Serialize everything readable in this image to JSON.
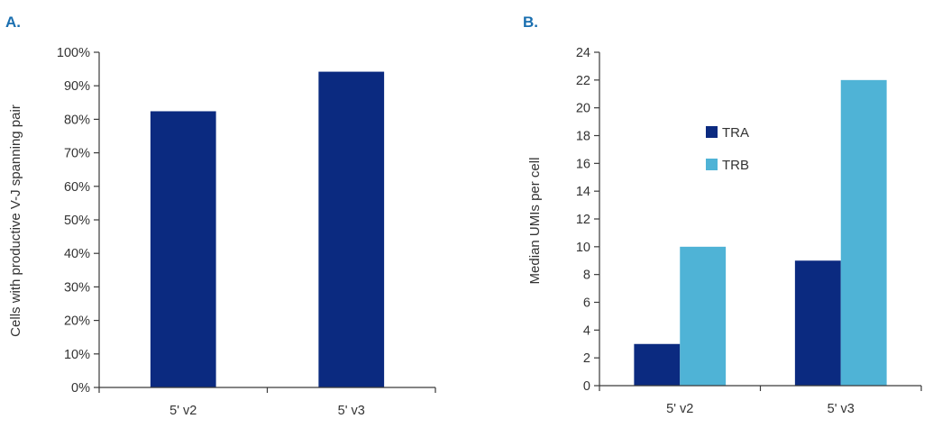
{
  "panels": {
    "a_label": "A.",
    "b_label": "B."
  },
  "colors": {
    "dark_blue": "#0b2a80",
    "light_blue": "#4fb3d6",
    "panel_label": "#1a6fb0"
  },
  "chart_data": [
    {
      "type": "bar",
      "categories": [
        "5' v2",
        "5' v3"
      ],
      "series": [
        {
          "values": [
            82.4,
            94.2
          ],
          "color": "#0b2a80"
        }
      ],
      "ylabel": "Cells with productive V-J spanning pair",
      "xlabel": "",
      "ylim": [
        0,
        100
      ],
      "yticks": [
        0,
        10,
        20,
        30,
        40,
        50,
        60,
        70,
        80,
        90,
        100
      ],
      "ytick_labels": [
        "0%",
        "10%",
        "20%",
        "30%",
        "40%",
        "50%",
        "60%",
        "70%",
        "80%",
        "90%",
        "100%"
      ],
      "grid": false,
      "legend": "none"
    },
    {
      "type": "bar",
      "categories": [
        "5' v2",
        "5' v3"
      ],
      "series": [
        {
          "name": "TRA",
          "values": [
            3,
            9
          ],
          "color": "#0b2a80"
        },
        {
          "name": "TRB",
          "values": [
            10,
            22
          ],
          "color": "#4fb3d6"
        }
      ],
      "ylabel": "Median UMIs per cell",
      "xlabel": "",
      "ylim": [
        0,
        24
      ],
      "yticks": [
        0,
        2,
        4,
        6,
        8,
        10,
        12,
        14,
        16,
        18,
        20,
        22,
        24
      ],
      "ytick_labels": [
        "0",
        "2",
        "4",
        "6",
        "8",
        "10",
        "12",
        "14",
        "16",
        "18",
        "20",
        "22",
        "24"
      ],
      "grid": false,
      "legend": "upper-left inside plot"
    }
  ]
}
